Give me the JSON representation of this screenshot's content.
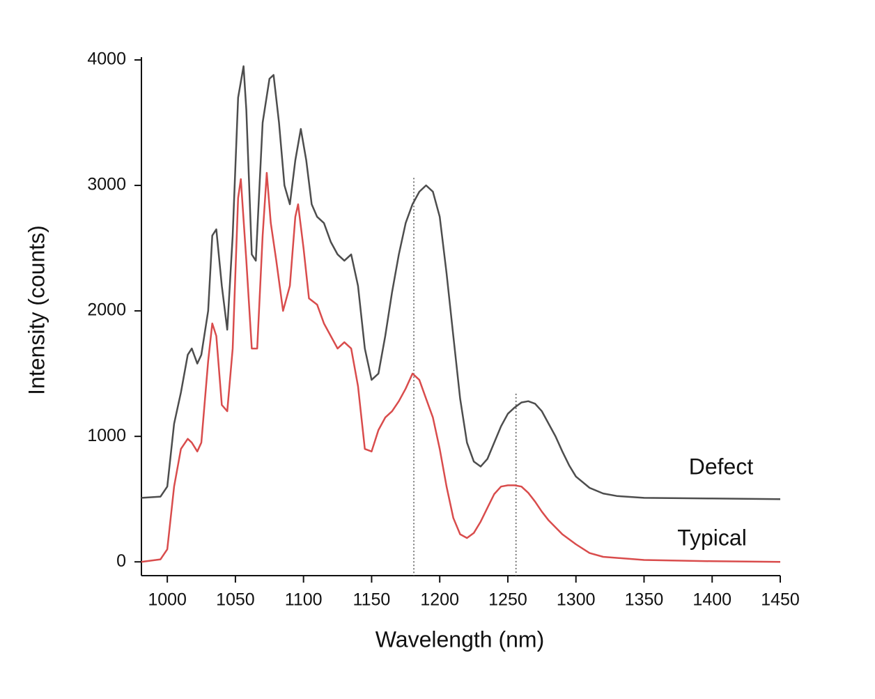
{
  "chart_data": {
    "type": "line",
    "xlabel": "Wavelength (nm)",
    "ylabel": "Intensity (counts)",
    "xlim": [
      981,
      1450
    ],
    "ylim": [
      -110,
      4000
    ],
    "xticks": [
      1000,
      1050,
      1100,
      1150,
      1200,
      1250,
      1300,
      1350,
      1400,
      1450
    ],
    "yticks": [
      0,
      1000,
      2000,
      3000,
      4000
    ],
    "vlines": [
      {
        "x": 1181,
        "top": 3060
      },
      {
        "x": 1256,
        "top": 1340
      }
    ],
    "series": [
      {
        "name": "Defect",
        "color": "#4d4d4d",
        "x": [
          981,
          995,
          1000,
          1005,
          1010,
          1015,
          1018,
          1022,
          1025,
          1030,
          1033,
          1036,
          1040,
          1044,
          1048,
          1052,
          1056,
          1058,
          1062,
          1065,
          1070,
          1075,
          1078,
          1082,
          1086,
          1090,
          1094,
          1098,
          1102,
          1106,
          1110,
          1115,
          1120,
          1125,
          1130,
          1135,
          1140,
          1145,
          1150,
          1155,
          1160,
          1165,
          1170,
          1175,
          1180,
          1185,
          1190,
          1195,
          1200,
          1205,
          1210,
          1215,
          1220,
          1225,
          1230,
          1235,
          1240,
          1245,
          1250,
          1255,
          1260,
          1265,
          1270,
          1275,
          1280,
          1285,
          1290,
          1295,
          1300,
          1310,
          1320,
          1330,
          1350,
          1400,
          1450
        ],
        "values": [
          510,
          520,
          600,
          1100,
          1350,
          1650,
          1700,
          1580,
          1650,
          2000,
          2600,
          2650,
          2200,
          1850,
          2600,
          3700,
          3950,
          3600,
          2450,
          2400,
          3500,
          3850,
          3880,
          3500,
          3000,
          2850,
          3200,
          3450,
          3200,
          2850,
          2750,
          2700,
          2550,
          2450,
          2400,
          2450,
          2200,
          1700,
          1450,
          1500,
          1800,
          2150,
          2450,
          2700,
          2850,
          2950,
          3000,
          2950,
          2750,
          2300,
          1800,
          1300,
          950,
          800,
          760,
          820,
          950,
          1080,
          1180,
          1230,
          1270,
          1280,
          1260,
          1200,
          1100,
          1000,
          880,
          770,
          680,
          590,
          545,
          525,
          510,
          505,
          500
        ]
      },
      {
        "name": "Typical",
        "color": "#d94c4c",
        "x": [
          981,
          995,
          1000,
          1005,
          1010,
          1015,
          1018,
          1022,
          1025,
          1030,
          1033,
          1036,
          1040,
          1044,
          1048,
          1052,
          1054,
          1058,
          1062,
          1066,
          1070,
          1073,
          1076,
          1080,
          1085,
          1090,
          1094,
          1096,
          1100,
          1104,
          1110,
          1115,
          1120,
          1125,
          1130,
          1135,
          1140,
          1145,
          1150,
          1155,
          1160,
          1165,
          1170,
          1175,
          1180,
          1185,
          1190,
          1195,
          1200,
          1205,
          1210,
          1215,
          1220,
          1225,
          1230,
          1235,
          1240,
          1245,
          1250,
          1255,
          1260,
          1265,
          1270,
          1275,
          1280,
          1290,
          1300,
          1310,
          1320,
          1350,
          1400,
          1450
        ],
        "values": [
          0,
          20,
          100,
          600,
          900,
          980,
          950,
          880,
          950,
          1600,
          1900,
          1800,
          1250,
          1200,
          1700,
          2900,
          3050,
          2400,
          1700,
          1700,
          2600,
          3100,
          2700,
          2400,
          2000,
          2200,
          2750,
          2850,
          2500,
          2100,
          2050,
          1900,
          1800,
          1700,
          1750,
          1700,
          1400,
          900,
          880,
          1050,
          1150,
          1200,
          1280,
          1380,
          1500,
          1450,
          1300,
          1150,
          900,
          600,
          350,
          220,
          190,
          230,
          320,
          430,
          540,
          600,
          610,
          610,
          600,
          550,
          480,
          400,
          330,
          220,
          140,
          70,
          40,
          15,
          5,
          0
        ]
      }
    ]
  }
}
